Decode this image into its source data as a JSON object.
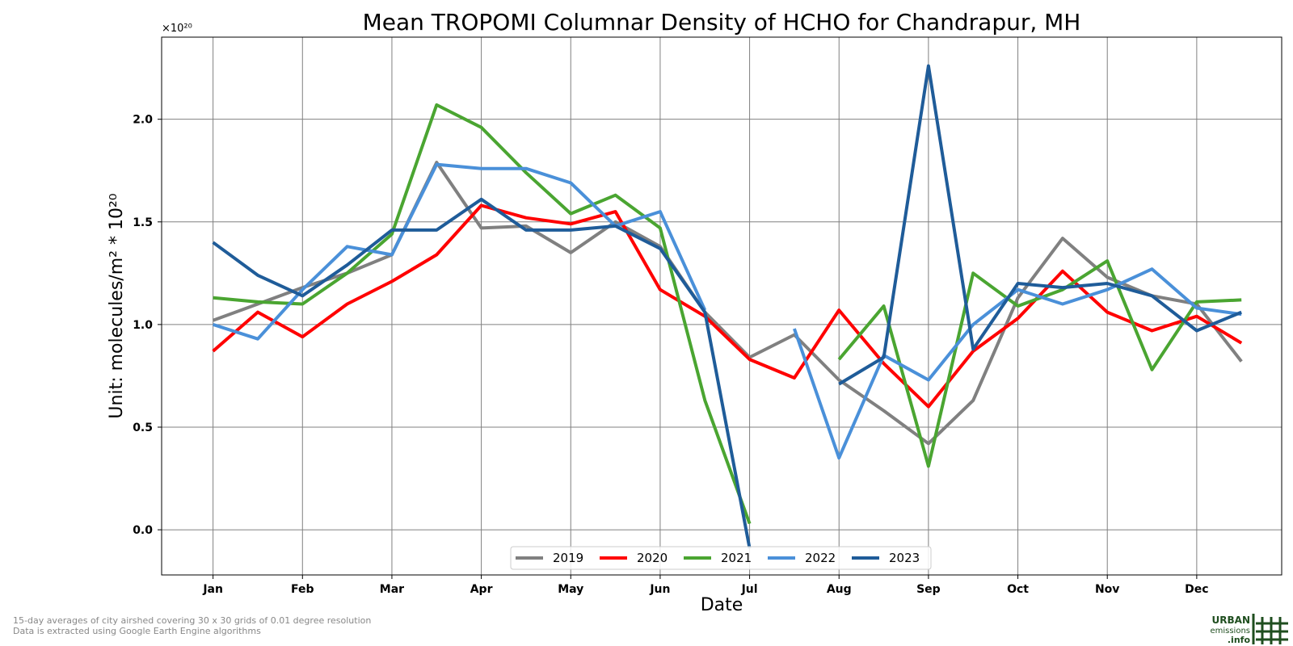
{
  "chart_data": {
    "type": "line",
    "title": "Mean TROPOMI Columnar Density of HCHO for Chandrapur, MH",
    "xlabel": "Date",
    "ylabel": "Unit: molecules/m² * 10²⁰",
    "y_offset_label": "×10²⁰",
    "ylim": [
      -0.22,
      2.4
    ],
    "y_ticks": [
      0.0,
      0.5,
      1.0,
      1.5,
      2.0
    ],
    "y_tick_labels": [
      "0.0",
      "0.5",
      "1.0",
      "1.5",
      "2.0"
    ],
    "x_ticks": [
      0,
      2,
      4,
      6,
      8,
      10,
      12,
      14,
      16,
      18,
      20,
      22
    ],
    "x_tick_labels": [
      "Jan",
      "Feb",
      "Mar",
      "Apr",
      "May",
      "Jun",
      "Jul",
      "Aug",
      "Sep",
      "Oct",
      "Nov",
      "Dec"
    ],
    "xlim": [
      -1.15,
      23.9
    ],
    "grid": true,
    "legend_position": "bottom-center",
    "series": [
      {
        "name": "2019",
        "color": "#808080",
        "values": [
          1.02,
          1.1,
          1.18,
          1.25,
          1.34,
          1.79,
          1.47,
          1.48,
          1.35,
          1.5,
          1.38,
          1.06,
          0.84,
          0.95,
          0.73,
          0.58,
          0.42,
          0.63,
          1.13,
          1.42,
          1.23,
          1.14,
          1.1,
          0.82
        ]
      },
      {
        "name": "2020",
        "color": "#ff0000",
        "values": [
          0.87,
          1.06,
          0.94,
          1.1,
          1.21,
          1.34,
          1.58,
          1.52,
          1.49,
          1.55,
          1.17,
          1.04,
          0.83,
          0.74,
          1.07,
          0.81,
          0.6,
          0.87,
          1.03,
          1.26,
          1.06,
          0.97,
          1.04,
          0.91
        ]
      },
      {
        "name": "2021",
        "color": "#4aa531",
        "values": [
          1.13,
          1.11,
          1.1,
          1.25,
          1.44,
          2.07,
          1.96,
          1.74,
          1.54,
          1.63,
          1.47,
          0.63,
          0.03,
          null,
          0.83,
          1.09,
          0.31,
          1.25,
          1.09,
          1.17,
          1.31,
          0.78,
          1.11,
          1.12
        ]
      },
      {
        "name": "2022",
        "color": "#4a90d9",
        "values": [
          1.0,
          0.93,
          1.17,
          1.38,
          1.34,
          1.78,
          1.76,
          1.76,
          1.69,
          1.48,
          1.55,
          1.07,
          null,
          0.98,
          0.35,
          0.85,
          0.73,
          1.0,
          1.17,
          1.1,
          1.17,
          1.27,
          1.08,
          1.05
        ]
      },
      {
        "name": "2023",
        "color": "#1f5c99",
        "values": [
          1.4,
          1.24,
          1.14,
          1.29,
          1.46,
          1.46,
          1.61,
          1.46,
          1.46,
          1.48,
          1.37,
          1.06,
          -0.09,
          null,
          0.71,
          0.84,
          2.26,
          0.88,
          1.2,
          1.18,
          1.2,
          1.14,
          0.97,
          1.06
        ]
      }
    ]
  },
  "footnote": {
    "line1": "15-day averages of city airshed covering 30 x 30 grids of 0.01 degree resolution",
    "line2": "Data is extracted using Google Earth Engine algorithms"
  },
  "logo": {
    "line1": "URBAN",
    "line2": "emissions",
    "line3": ".info",
    "color": "#1f4e1f"
  }
}
